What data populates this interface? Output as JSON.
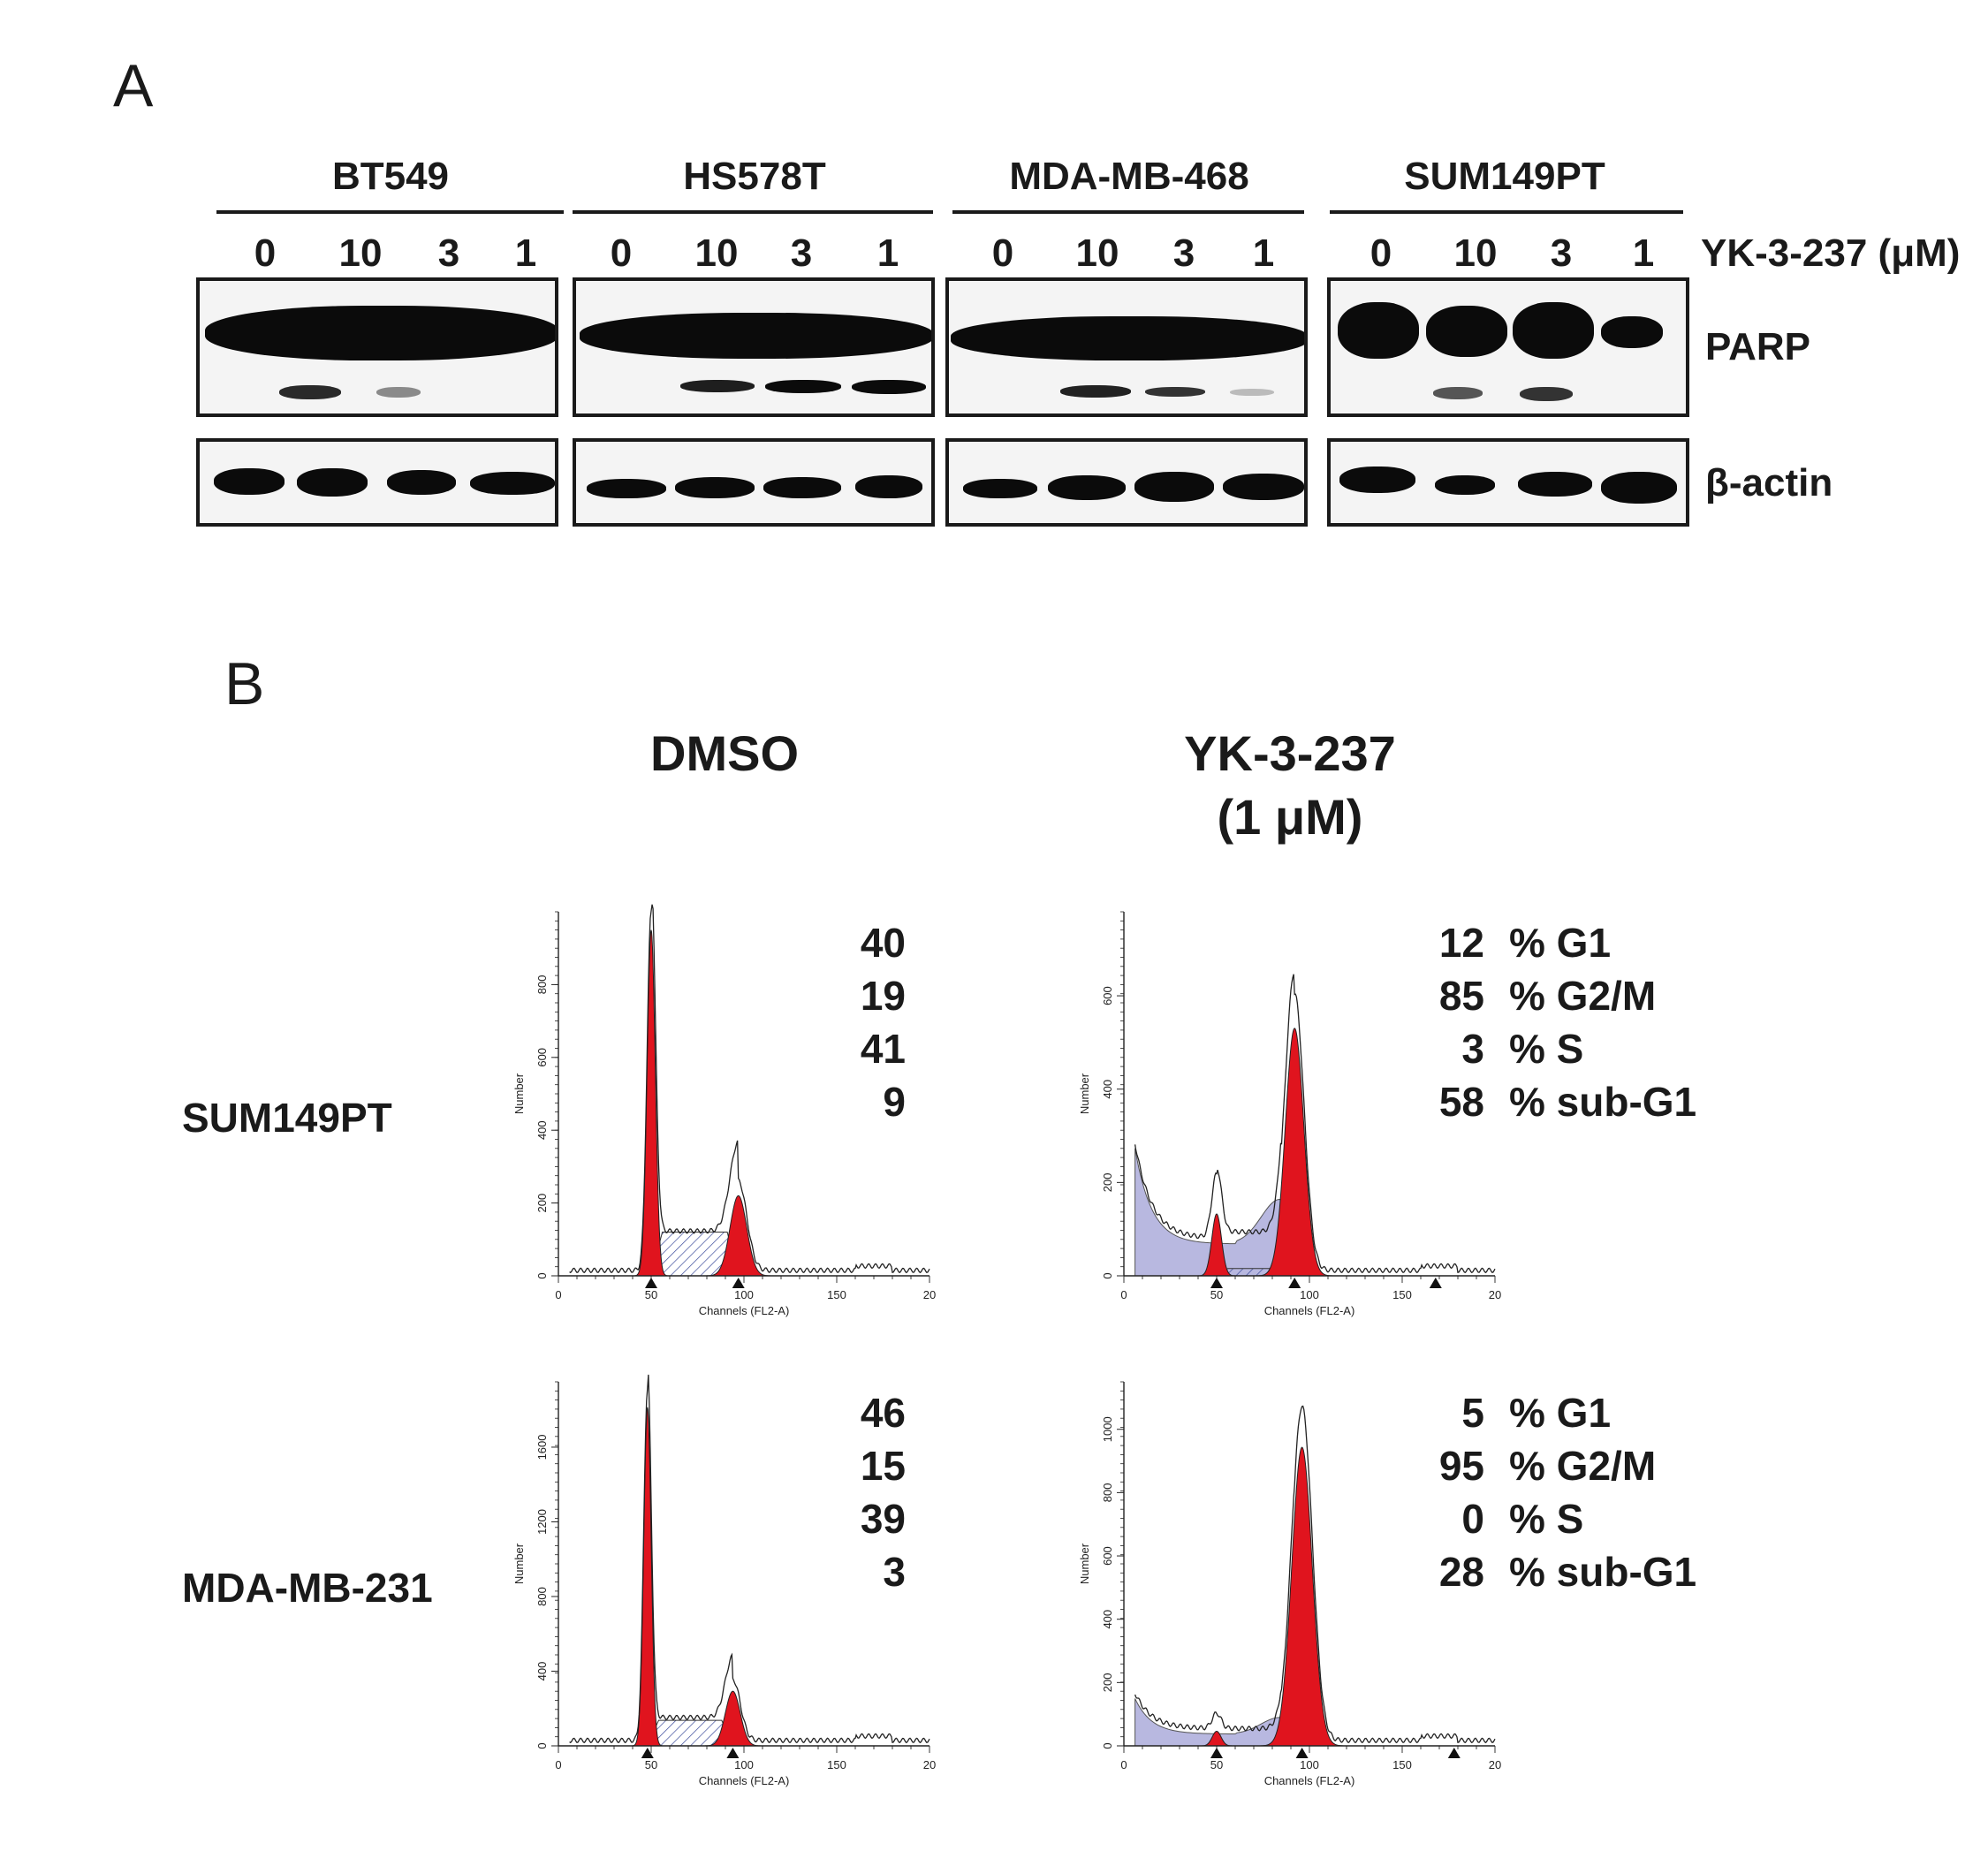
{
  "panel_a": {
    "letter": "A",
    "treatment_label": "YK-3-237 (μM)",
    "doses": [
      "0",
      "10",
      "3",
      "1"
    ],
    "cell_lines": [
      "BT549",
      "HS578T",
      "MDA-MB-468",
      "SUM149PT"
    ],
    "proteins": [
      "PARP",
      "β-actin"
    ]
  },
  "panel_b": {
    "letter": "B",
    "conditions": [
      "DMSO",
      "YK-3-237",
      "(1 μM)"
    ],
    "rows": [
      {
        "label": "SUM149PT",
        "dmso": {
          "values": [
            "40",
            "19",
            "41",
            "9"
          ],
          "yticks": [
            "0",
            "200",
            "400",
            "600",
            "800"
          ],
          "ymax": 1000
        },
        "yk": {
          "values": [
            "12",
            "85",
            "3",
            "58"
          ],
          "yticks": [
            "0",
            "200",
            "400",
            "600"
          ],
          "ymax": 780
        }
      },
      {
        "label": "MDA-MB-231",
        "dmso": {
          "values": [
            "46",
            "15",
            "39",
            "3"
          ],
          "yticks": [
            "0",
            "400",
            "800",
            "1200",
            "1600"
          ],
          "ymax": 1950
        },
        "yk": {
          "values": [
            "5",
            "95",
            "0",
            "28"
          ],
          "yticks": [
            "0",
            "200",
            "400",
            "600",
            "800",
            "1000"
          ],
          "ymax": 1150
        }
      }
    ],
    "phase_labels": [
      "% G1",
      "% G2/M",
      "% S",
      "% sub-G1"
    ],
    "axis": {
      "xlabel": "Channels (FL2-A)",
      "ylabel": "Number",
      "xticks": [
        "0",
        "50",
        "100",
        "150",
        "20"
      ]
    }
  },
  "colors": {
    "g1_g2_fill": "#e0141e",
    "s_phase_hatch": "#3a4a9a",
    "subg1_fill": "#b8b8e0",
    "ink": "#1a1a1a"
  }
}
